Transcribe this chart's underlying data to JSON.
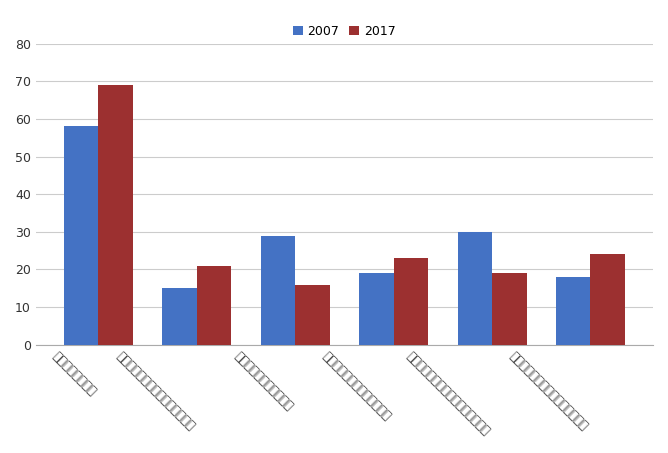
{
  "categories": [
    "関税の削減・撒廃",
    "サービス分野の規制緩和・自由化",
    "投資の規制緩和・自由化",
    "人の移動の規制緩和・自由化",
    "金融・為替取引の規制緩和・自由化",
    "原産地証明書の簡素化・域内統一"
  ],
  "values_2007": [
    58,
    15,
    29,
    19,
    30,
    18
  ],
  "values_2017": [
    69,
    21,
    16,
    23,
    19,
    24
  ],
  "color_2007": "#4472C4",
  "color_2017": "#9C3030",
  "legend_labels": [
    "2007",
    "2017"
  ],
  "ylim": [
    0,
    80
  ],
  "yticks": [
    0,
    10,
    20,
    30,
    40,
    50,
    60,
    70,
    80
  ],
  "background_color": "#FFFFFF",
  "grid_color": "#CCCCCC",
  "bar_width": 0.35,
  "label_rotation": -45,
  "label_fontsize": 8.5,
  "tick_fontsize": 9
}
